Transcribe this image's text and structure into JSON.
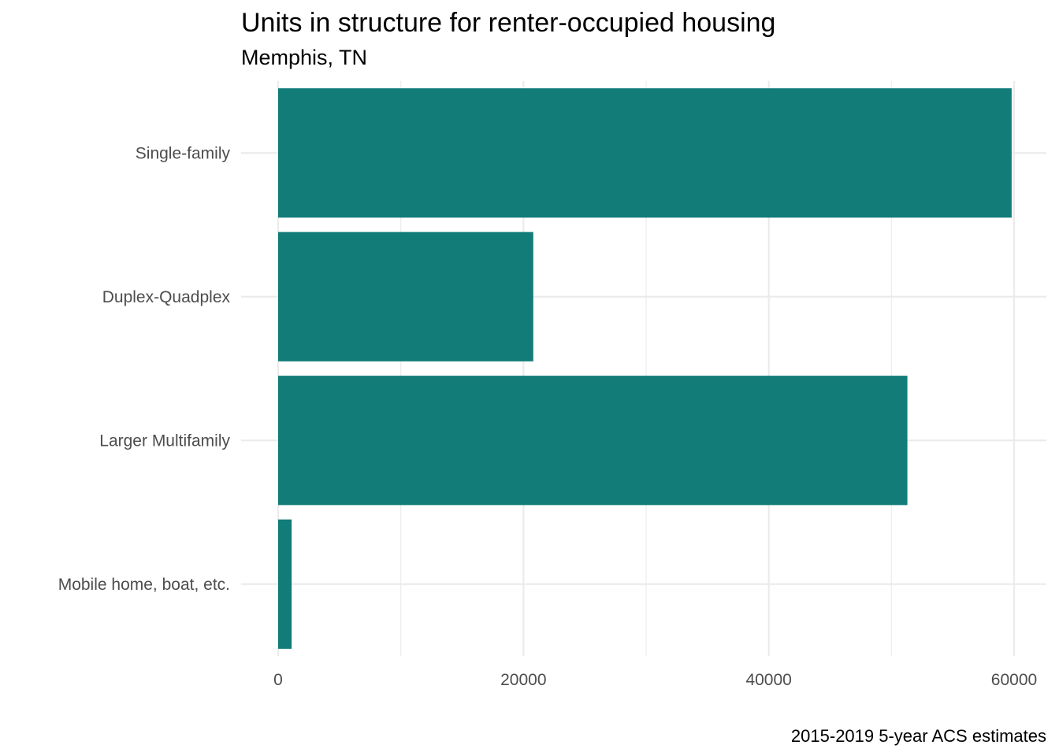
{
  "chart_data": {
    "type": "bar",
    "orientation": "horizontal",
    "title": "Units in structure for renter-occupied housing",
    "subtitle": "Memphis, TN",
    "caption": "2015-2019 5-year ACS estimates",
    "categories": [
      "Single-family",
      "Duplex-Quadplex",
      "Larger Multifamily",
      "Mobile home, boat, etc."
    ],
    "values": [
      59800,
      20800,
      51300,
      1100
    ],
    "xlim": [
      0,
      62500
    ],
    "xticks": [
      0,
      20000,
      40000,
      60000
    ],
    "xtick_labels": [
      "0",
      "20000",
      "40000",
      "60000"
    ],
    "xlabel": "",
    "ylabel": "",
    "grid": true,
    "bar_color": "#127c79",
    "grid_color": "#ebebeb",
    "tick_label_color": "#4d4d4d"
  }
}
